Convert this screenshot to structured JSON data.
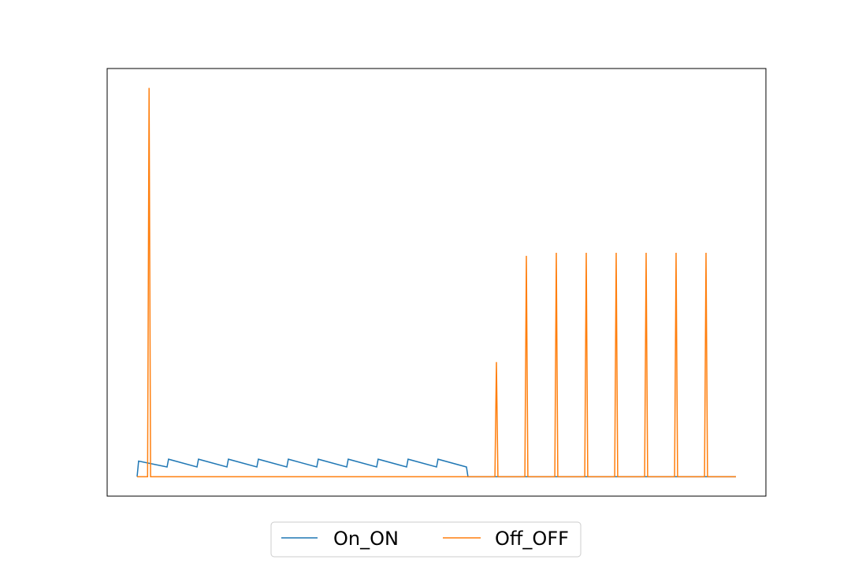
{
  "chart_data": {
    "type": "line",
    "title": "",
    "xlabel": "",
    "ylabel": "",
    "xlim": [
      -1,
      21
    ],
    "ylim": [
      -0.05,
      1.05
    ],
    "grid": false,
    "axis_ticks_visible": false,
    "legend_placement": "bottom-center",
    "legend_columns": 2,
    "series": [
      {
        "name": "On_ON",
        "color": "#1f77b4",
        "points": [
          [
            0.0,
            0.0
          ],
          [
            0.05,
            0.04
          ],
          [
            1.0,
            0.025
          ],
          [
            1.05,
            0.045
          ],
          [
            2.0,
            0.025
          ],
          [
            2.05,
            0.045
          ],
          [
            3.0,
            0.025
          ],
          [
            3.05,
            0.045
          ],
          [
            4.0,
            0.025
          ],
          [
            4.05,
            0.045
          ],
          [
            5.0,
            0.025
          ],
          [
            5.05,
            0.045
          ],
          [
            6.0,
            0.025
          ],
          [
            6.05,
            0.045
          ],
          [
            7.0,
            0.025
          ],
          [
            7.05,
            0.045
          ],
          [
            8.0,
            0.025
          ],
          [
            8.05,
            0.045
          ],
          [
            9.0,
            0.025
          ],
          [
            9.05,
            0.045
          ],
          [
            10.0,
            0.025
          ],
          [
            10.05,
            0.045
          ],
          [
            11.0,
            0.025
          ],
          [
            11.05,
            0.0
          ],
          [
            20.0,
            0.0
          ]
        ]
      },
      {
        "name": "Off_OFF",
        "color": "#ff7f0e",
        "points": [
          [
            0.0,
            0.0
          ],
          [
            0.35,
            0.0
          ],
          [
            0.4,
            1.0
          ],
          [
            0.45,
            0.0
          ],
          [
            11.0,
            0.0
          ],
          [
            11.95,
            0.0
          ],
          [
            12.0,
            0.295
          ],
          [
            12.05,
            0.0
          ],
          [
            12.95,
            0.0
          ],
          [
            13.0,
            0.568
          ],
          [
            13.05,
            0.0
          ],
          [
            13.95,
            0.0
          ],
          [
            14.0,
            0.576
          ],
          [
            14.05,
            0.0
          ],
          [
            14.95,
            0.0
          ],
          [
            15.0,
            0.576
          ],
          [
            15.05,
            0.0
          ],
          [
            15.95,
            0.0
          ],
          [
            16.0,
            0.576
          ],
          [
            16.05,
            0.0
          ],
          [
            16.95,
            0.0
          ],
          [
            17.0,
            0.576
          ],
          [
            17.05,
            0.0
          ],
          [
            17.95,
            0.0
          ],
          [
            18.0,
            0.576
          ],
          [
            18.05,
            0.0
          ],
          [
            18.95,
            0.0
          ],
          [
            19.0,
            0.576
          ],
          [
            19.05,
            0.0
          ],
          [
            20.0,
            0.0
          ]
        ]
      }
    ]
  }
}
